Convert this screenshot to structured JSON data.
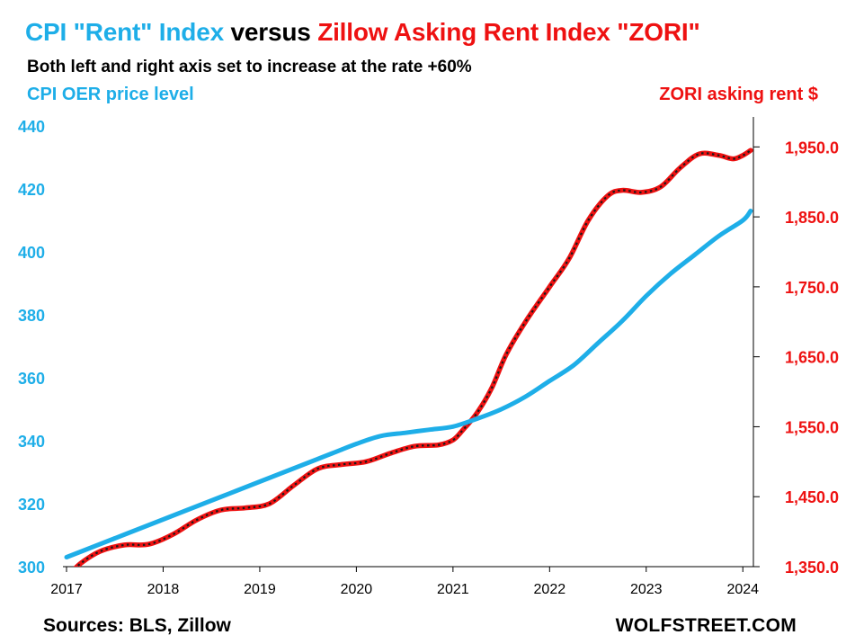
{
  "chart_data": {
    "type": "line",
    "title_parts": {
      "part1": "CPI \"Rent\" Index ",
      "part2": "versus ",
      "part3": "Zillow Asking Rent Index \"ZORI\""
    },
    "subtitle": "Both left and right axis set to increase at the rate +60%",
    "left_axis": {
      "label": "CPI OER  price level",
      "ticks": [
        "300",
        "320",
        "340",
        "360",
        "380",
        "400",
        "420",
        "440"
      ],
      "ylim": [
        300,
        440
      ]
    },
    "right_axis": {
      "label": "ZORI asking rent $",
      "ticks": [
        "1,350.0",
        "1,450.0",
        "1,550.0",
        "1,650.0",
        "1,750.0",
        "1,850.0",
        "1,950.0"
      ],
      "ylim": [
        1350,
        1980
      ]
    },
    "x_axis": {
      "ticks": [
        "2017",
        "2018",
        "2019",
        "2020",
        "2021",
        "2022",
        "2023",
        "2024"
      ],
      "xlim": [
        2017.0,
        2024.1
      ]
    },
    "series": [
      {
        "name": "CPI OER price level",
        "axis": "left",
        "color": "#1eaee8",
        "x": [
          2017.0,
          2017.25,
          2017.5,
          2017.75,
          2018.0,
          2018.25,
          2018.5,
          2018.75,
          2019.0,
          2019.25,
          2019.5,
          2019.75,
          2020.0,
          2020.25,
          2020.5,
          2020.75,
          2021.0,
          2021.25,
          2021.5,
          2021.75,
          2022.0,
          2022.25,
          2022.5,
          2022.75,
          2023.0,
          2023.25,
          2023.5,
          2023.75,
          2024.0,
          2024.08
        ],
        "values": [
          303,
          306,
          309,
          312,
          315,
          318,
          321,
          324,
          327,
          330,
          333,
          336,
          339,
          341.5,
          342.5,
          343.5,
          344.5,
          347,
          350,
          354,
          359,
          364,
          371,
          378,
          386,
          393,
          399,
          405,
          410,
          413
        ]
      },
      {
        "name": "ZORI asking rent $",
        "axis": "right",
        "color": "#ee1111",
        "dash_color": "#1a1a1a",
        "x": [
          2017.0,
          2017.15,
          2017.35,
          2017.6,
          2017.85,
          2018.1,
          2018.35,
          2018.6,
          2018.85,
          2019.1,
          2019.35,
          2019.6,
          2019.85,
          2020.1,
          2020.35,
          2020.6,
          2020.85,
          2021.0,
          2021.1,
          2021.25,
          2021.4,
          2021.55,
          2021.75,
          2022.0,
          2022.2,
          2022.4,
          2022.6,
          2022.75,
          2022.95,
          2023.15,
          2023.35,
          2023.55,
          2023.75,
          2023.9,
          2024.0,
          2024.08
        ],
        "values": [
          1335,
          1355,
          1372,
          1381,
          1382,
          1396,
          1417,
          1431,
          1434,
          1440,
          1466,
          1490,
          1496,
          1500,
          1512,
          1522,
          1524,
          1531,
          1545,
          1570,
          1605,
          1653,
          1700,
          1750,
          1790,
          1845,
          1880,
          1888,
          1885,
          1893,
          1920,
          1940,
          1938,
          1933,
          1938,
          1945
        ]
      }
    ]
  },
  "sources": "Sources: BLS, Zillow",
  "brand": "WOLFSTREET.COM",
  "colors": {
    "title_blue": "#1eaee8",
    "title_red": "#ee1111",
    "cpi_line": "#1eaee8",
    "zori_line": "#ee1111",
    "axis_left_text": "#1eaee8",
    "axis_right_text": "#ee1111"
  }
}
